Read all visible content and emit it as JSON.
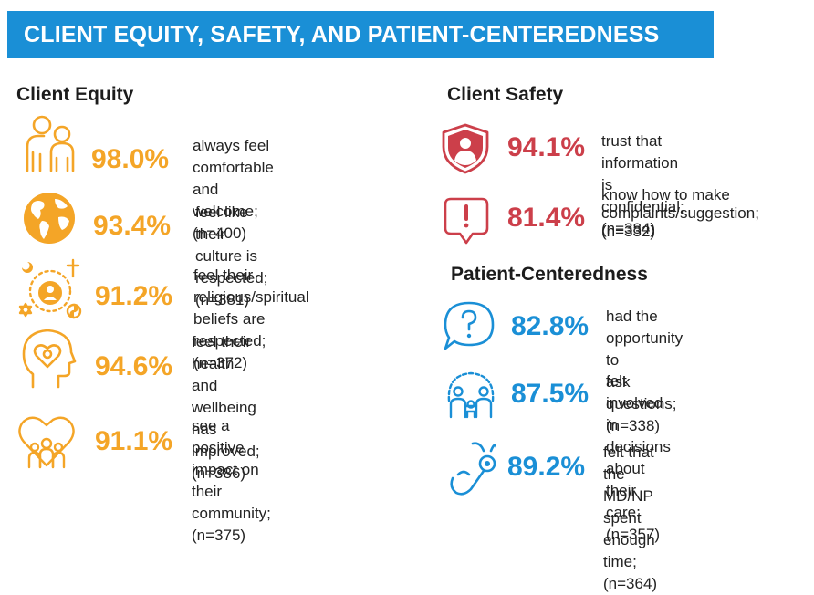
{
  "banner": {
    "title": "CLIENT EQUITY, SAFETY, AND PATIENT-CENTEREDNESS"
  },
  "colors": {
    "banner": "#1a8fd6",
    "equity": "#f4a527",
    "safety": "#cc3f4a",
    "centeredness": "#1a8fd6"
  },
  "equity": {
    "title": "Client Equity",
    "items": [
      {
        "icon": "family-icon",
        "percent": "98.0%",
        "line1": "always feel comfortable",
        "line2": "and welcome; (n=400)"
      },
      {
        "icon": "globe-icon",
        "percent": "93.4%",
        "line1": "feel like their culture is",
        "line2": "respected; (n=381)"
      },
      {
        "icon": "religion-symbols-icon",
        "percent": "91.2%",
        "line1": "feel their religious/spiritual",
        "line2": "beliefs are respected; (n=372)"
      },
      {
        "icon": "head-heart-icon",
        "percent": "94.6%",
        "line1": "feel their health and wellbeing",
        "line2": "has improved; (n=386)"
      },
      {
        "icon": "community-heart-icon",
        "percent": "91.1%",
        "line1": "see a positive impact on",
        "line2": "their community; (n=375)"
      }
    ]
  },
  "safety": {
    "title": "Client Safety",
    "items": [
      {
        "icon": "shield-person-icon",
        "percent": "94.1%",
        "line1": "trust that information is",
        "line2": "confidential; (n=384)"
      },
      {
        "icon": "complaint-bubble-icon",
        "percent": "81.4%",
        "line1": "know how to make",
        "line2": "complaints/suggestion;",
        "line3": "(n=332)"
      }
    ]
  },
  "centeredness": {
    "title": "Patient-Centeredness",
    "items": [
      {
        "icon": "question-bubble-icon",
        "percent": "82.8%",
        "line1": "had the opportunity to",
        "line2": "ask questions; (n=338)"
      },
      {
        "icon": "group-decision-icon",
        "percent": "87.5%",
        "line1": "felt involved in decisions",
        "line2": "about their care; (n=357)"
      },
      {
        "icon": "stethoscope-icon",
        "percent": "89.2%",
        "line1": "felt that the MD/NP spent",
        "line2": "enough time; (n=364)"
      }
    ]
  }
}
